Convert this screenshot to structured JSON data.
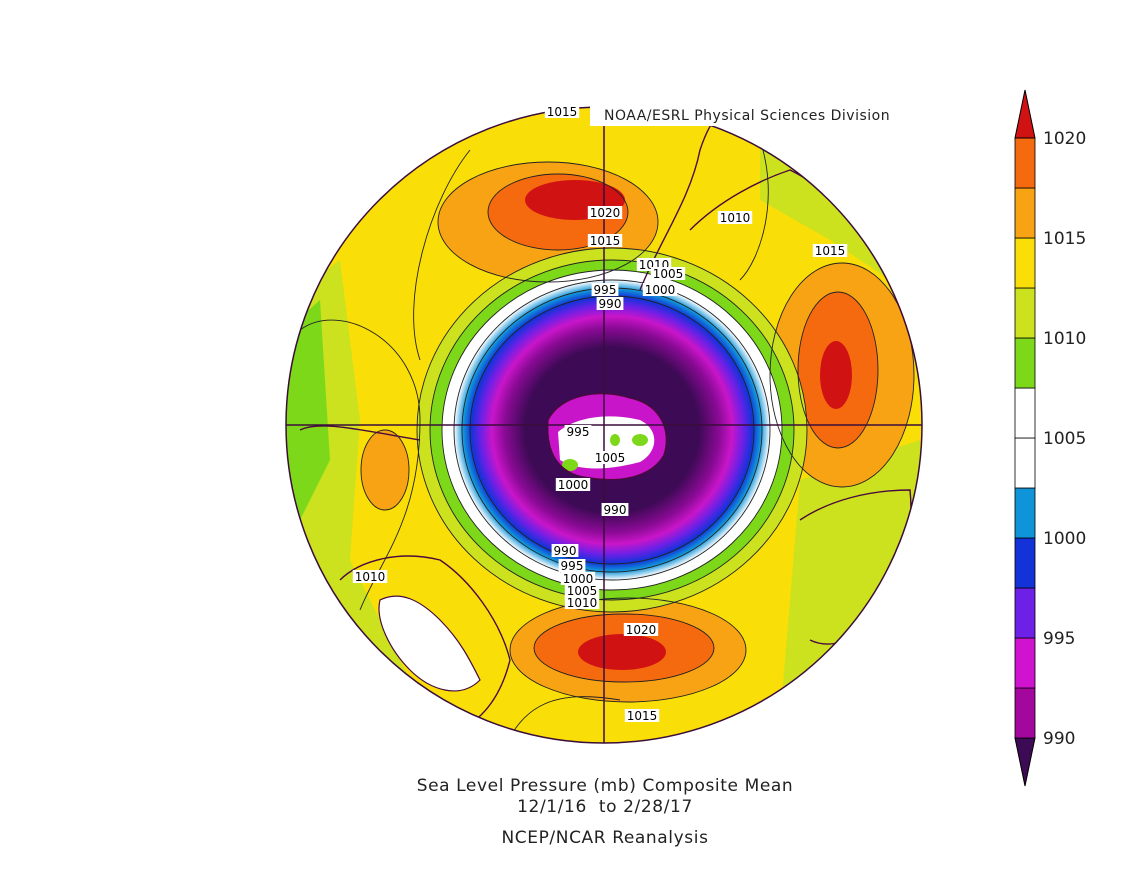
{
  "credit": "NOAA/ESRL Physical Sciences Division",
  "caption": {
    "line1": "Sea Level Pressure (mb) Composite Mean",
    "line2": "12/1/16  to 2/28/17",
    "line3": "NCEP/NCAR Reanalysis"
  },
  "colorbar": {
    "levels": [
      "990",
      "995",
      "1000",
      "1005",
      "1010",
      "1015",
      "1020"
    ],
    "colors": [
      "#3d0a55",
      "#a3079d",
      "#cf13cf",
      "#6d20e6",
      "#1333d9",
      "#1094d9",
      "#ffffff",
      "#ffffff",
      "#7ed81a",
      "#cde21e",
      "#f9de08",
      "#f8a314",
      "#f5690f",
      "#d11212"
    ]
  },
  "contour_labels": [
    {
      "text": "1015"
    },
    {
      "text": "1020"
    },
    {
      "text": "1015"
    },
    {
      "text": "1010"
    },
    {
      "text": "1015"
    },
    {
      "text": "1010"
    },
    {
      "text": "1005"
    },
    {
      "text": "1000"
    },
    {
      "text": "995"
    },
    {
      "text": "990"
    },
    {
      "text": "995"
    },
    {
      "text": "1005"
    },
    {
      "text": "1000"
    },
    {
      "text": "990"
    },
    {
      "text": "990"
    },
    {
      "text": "995"
    },
    {
      "text": "1000"
    },
    {
      "text": "1005"
    },
    {
      "text": "1010"
    },
    {
      "text": "1010"
    },
    {
      "text": "1020"
    },
    {
      "text": "1015"
    }
  ]
}
